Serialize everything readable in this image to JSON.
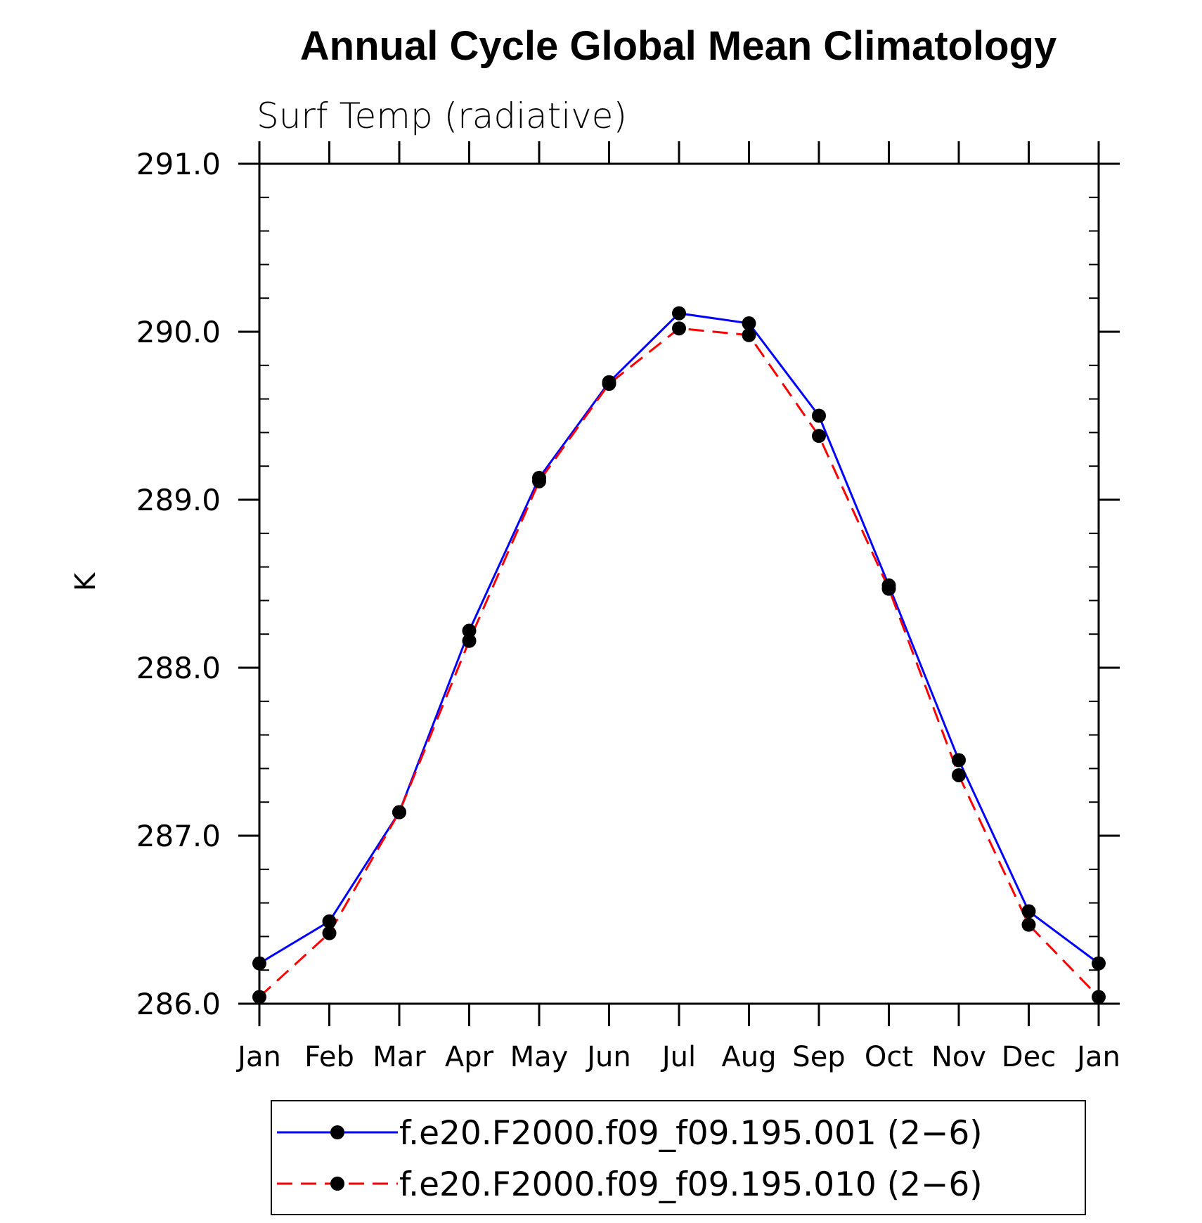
{
  "chart_data": {
    "type": "line",
    "title": "Annual Cycle Global Mean Climatology",
    "subtitle": "Surf Temp (radiative)",
    "xlabel": "",
    "ylabel": "K",
    "categories": [
      "Jan",
      "Feb",
      "Mar",
      "Apr",
      "May",
      "Jun",
      "Jul",
      "Aug",
      "Sep",
      "Oct",
      "Nov",
      "Dec",
      "Jan"
    ],
    "ylim": [
      286.0,
      291.0
    ],
    "yticks": [
      "286.0",
      "287.0",
      "288.0",
      "289.0",
      "290.0",
      "291.0"
    ],
    "grid": false,
    "legend_position": "bottom",
    "series": [
      {
        "name": "f.e20.F2000.f09_f09.195.001 (2−6)",
        "color": "#0000ff",
        "line_style": "solid",
        "marker": "filled-circle",
        "values": [
          286.24,
          286.49,
          287.14,
          288.22,
          289.13,
          289.7,
          290.11,
          290.05,
          289.5,
          288.49,
          287.45,
          286.55,
          286.24
        ]
      },
      {
        "name": "f.e20.F2000.f09_f09.195.010 (2−6)",
        "color": "#ff0000",
        "line_style": "dashed",
        "marker": "filled-circle",
        "values": [
          286.04,
          286.42,
          287.14,
          288.16,
          289.11,
          289.69,
          290.02,
          289.98,
          289.38,
          288.47,
          287.36,
          286.47,
          286.04
        ]
      }
    ]
  }
}
